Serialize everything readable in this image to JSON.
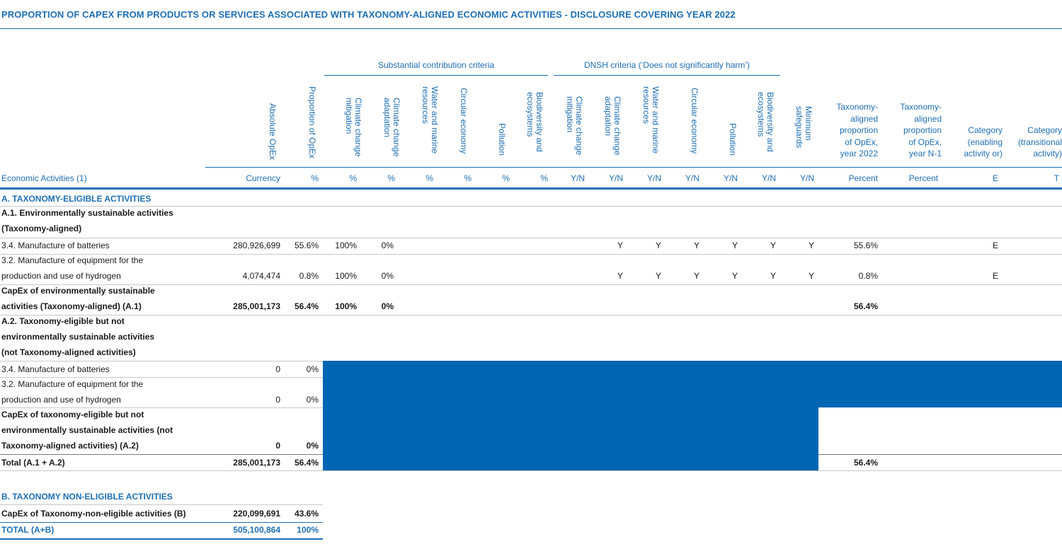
{
  "title": "PROPORTION OF CAPEX FROM PRODUCTS OR SERVICES ASSOCIATED WITH TAXONOMY-ALIGNED ECONOMIC ACTIVITIES - DISCLOSURE COVERING YEAR 2022",
  "groups": {
    "substantial": "Substantial contribution criteria",
    "dnsh": "DNSH criteria (‘Does not significantly harm’)"
  },
  "headers": {
    "absolute": "Absolute OpEx",
    "proportion": "Proportion of OpEx",
    "sc_mitigation": "Climate change mitigation",
    "sc_adaptation": "Climate change adaptation",
    "sc_water": "Water and marine resources",
    "sc_circular": "Circular economy",
    "sc_pollution": "Pollution",
    "sc_biodiversity": "Biodiversity and ecosystems",
    "dn_mitigation": "Climate change mitigation",
    "dn_adaptation": "Climate change adaptation",
    "dn_water": "Water and marine resources",
    "dn_circular": "Circular economy",
    "dn_pollution": "Pollution",
    "dn_biodiversity": "Biodiversity and ecosystems",
    "dn_safeguards": "Minimum safeguards",
    "aligned_2022": "Taxonomy-\naligned\nproportion\nof OpEx,\nyear 2022",
    "aligned_n1": "Taxonomy-\naligned\nproportion\nof OpEx,\nyear N-1",
    "cat_enabling": "Category\n(enabling\nactivity or)",
    "cat_transitional": "Category\n(transitional\nactivity)"
  },
  "units": {
    "econ": "Economic Activities (1)",
    "currency": "Currency",
    "pct": "%",
    "yn": "Y/N",
    "percent": "Percent",
    "e": "E",
    "t": "T"
  },
  "sections": {
    "a": "A. TAXONOMY-ELIGIBLE ACTIVITIES",
    "a1_l1": "A.1. Environmentally sustainable activities",
    "a1_l2": "(Taxonomy-aligned)",
    "a2_l1": "A.2. Taxonomy-eligible but not",
    "a2_l2": "environmentally sustainable activities",
    "a2_l3": "(not Taxonomy-aligned activities)",
    "b": "B. TAXONOMY NON-ELIGIBLE ACTIVITIES"
  },
  "rows": {
    "r1": {
      "label": "3.4. Manufacture of batteries",
      "abs": "280,926,699",
      "prop": "55.6%",
      "mit": "100%",
      "adp": "0%",
      "y": "Y",
      "aligned": "55.6%",
      "cat": "E"
    },
    "r2": {
      "label1": "3.2. Manufacture of equipment for the",
      "label2": "production and use of hydrogen",
      "abs": "4,074,474",
      "prop": "0.8%",
      "mit": "100%",
      "adp": "0%",
      "y": "Y",
      "aligned": "0.8%",
      "cat": "E"
    },
    "a1tot": {
      "label1": "CapEx of environmentally sustainable",
      "label2": "activities (Taxonomy-aligned) (A.1)",
      "abs": "285,001,173",
      "prop": "56.4%",
      "mit": "100%",
      "adp": "0%",
      "aligned": "56.4%"
    },
    "r3": {
      "label": "3.4. Manufacture of batteries",
      "abs": "0",
      "prop": "0%"
    },
    "r4": {
      "label1": "3.2. Manufacture of equipment for the",
      "label2": "production and use of hydrogen",
      "abs": "0",
      "prop": "0%"
    },
    "a2tot": {
      "label1": "CapEx of taxonomy-eligible but not",
      "label2": "environmentally sustainable activities (not",
      "label3": "Taxonomy-aligned activities) (A.2)",
      "abs": "0",
      "prop": "0%"
    },
    "total": {
      "label": "Total (A.1 + A.2)",
      "abs": "285,001,173",
      "prop": "56.4%",
      "aligned": "56.4%"
    },
    "b": {
      "label": "CapEx of Taxonomy-non-eligible activities (B)",
      "abs": "220,099,691",
      "prop": "43.6%"
    },
    "grand": {
      "label": "TOTAL (A+B)",
      "abs": "505,100,864",
      "prop": "100%"
    }
  },
  "colors": {
    "accent": "#1e6fb5",
    "fill": "#0066b2"
  }
}
